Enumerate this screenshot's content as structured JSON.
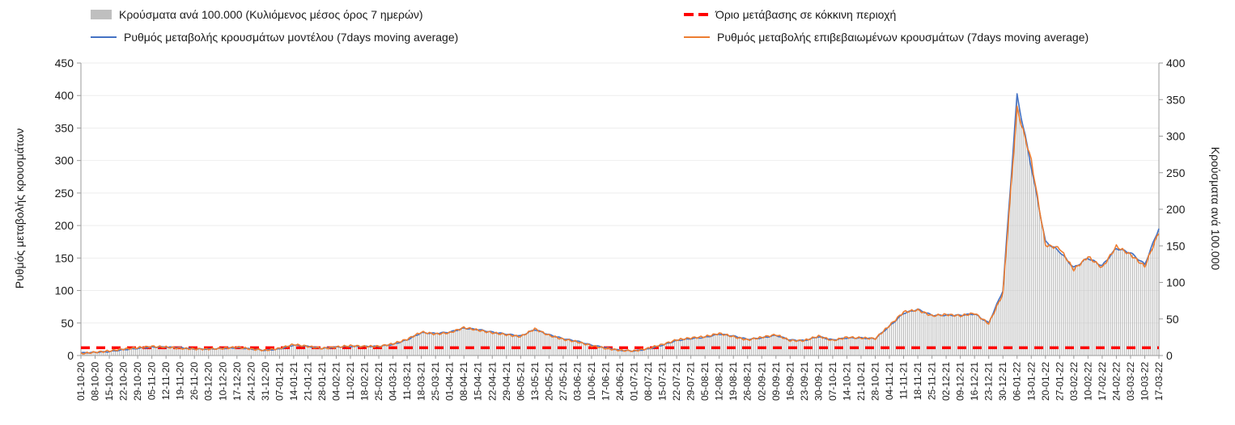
{
  "legend": {
    "bars": "Κρούσματα ανά 100.000 (Κυλιόμενος μέσος όρος 7 ημερών)",
    "threshold": "Όριο μετάβασης σε κόκκινη περιοχή",
    "model": "Ρυθμός μεταβολής κρουσμάτων μοντέλου (7days moving average)",
    "confirmed": "Ρυθμός μεταβολής επιβεβαιωμένων κρουσμάτων (7days moving average)"
  },
  "axes": {
    "left_title": "Ρυθμός μεταβολής κρουσμάτων",
    "right_title": "Κρούσματα ανά 100.000"
  },
  "colors": {
    "bars": "#bfbfbf",
    "model_line": "#4472c4",
    "confirmed_line": "#ed7d31",
    "threshold": "#fe0000",
    "grid": "#eeeeee",
    "axis": "#9a9a9a"
  },
  "chart_data": {
    "type": "combo",
    "legend_position": "top",
    "grid": "horizontal-faint",
    "x": [
      "01-10-20",
      "08-10-20",
      "15-10-20",
      "22-10-20",
      "29-10-20",
      "05-11-20",
      "12-11-20",
      "19-11-20",
      "26-11-20",
      "03-12-20",
      "10-12-20",
      "17-12-20",
      "24-12-20",
      "31-12-20",
      "07-01-21",
      "14-01-21",
      "21-01-21",
      "28-01-21",
      "04-02-21",
      "11-02-21",
      "18-02-21",
      "25-02-21",
      "04-03-21",
      "11-03-21",
      "18-03-21",
      "25-03-21",
      "01-04-21",
      "08-04-21",
      "15-04-21",
      "22-04-21",
      "29-04-21",
      "06-05-21",
      "13-05-21",
      "20-05-21",
      "27-05-21",
      "03-06-21",
      "10-06-21",
      "17-06-21",
      "24-06-21",
      "01-07-21",
      "08-07-21",
      "15-07-21",
      "22-07-21",
      "29-07-21",
      "05-08-21",
      "12-08-21",
      "19-08-21",
      "26-08-21",
      "02-09-21",
      "09-09-21",
      "16-09-21",
      "23-09-21",
      "30-09-21",
      "07-10-21",
      "14-10-21",
      "21-10-21",
      "28-10-21",
      "04-11-21",
      "11-11-21",
      "18-11-21",
      "25-11-21",
      "02-12-21",
      "09-12-21",
      "16-12-21",
      "23-12-21",
      "30-12-21",
      "06-01-22",
      "13-01-22",
      "20-01-22",
      "27-01-22",
      "03-02-22",
      "10-02-22",
      "17-02-22",
      "24-02-22",
      "03-03-22",
      "10-03-22",
      "17-03-22"
    ],
    "series": [
      {
        "name": "Κρούσματα ανά 100.000 (Κυλιόμενος μέσος όρος 7 ημερών)",
        "type": "bar",
        "axis": "right",
        "color": "#bfbfbf",
        "values": [
          4,
          4,
          5,
          8,
          10,
          12,
          12,
          11,
          9,
          9,
          10,
          11,
          9,
          7,
          9,
          14,
          12,
          10,
          12,
          12,
          12,
          12,
          15,
          21,
          31,
          30,
          32,
          37,
          36,
          32,
          29,
          27,
          36,
          28,
          23,
          20,
          14,
          11,
          7,
          6,
          9,
          14,
          20,
          23,
          25,
          29,
          27,
          22,
          24,
          28,
          21,
          20,
          26,
          21,
          24,
          24,
          23,
          40,
          58,
          63,
          55,
          55,
          55,
          57,
          45,
          89,
          356,
          258,
          156,
          142,
          120,
          134,
          123,
          147,
          141,
          125,
          174
        ]
      },
      {
        "name": "Ρυθμός μεταβολής κρουσμάτων μοντέλου (7days moving average)",
        "type": "line",
        "axis": "left",
        "color": "#4472c4",
        "values": [
          4,
          5,
          6,
          9,
          11,
          13,
          13,
          12,
          10,
          10,
          11,
          12,
          10,
          8,
          10,
          16,
          14,
          11,
          13,
          14,
          14,
          14,
          17,
          24,
          35,
          34,
          36,
          42,
          40,
          36,
          33,
          30,
          40,
          32,
          26,
          22,
          16,
          12,
          8,
          7,
          10,
          16,
          23,
          26,
          28,
          33,
          30,
          25,
          27,
          31,
          24,
          23,
          29,
          24,
          27,
          27,
          26,
          45,
          65,
          71,
          62,
          62,
          62,
          64,
          50,
          100,
          400,
          290,
          175,
          160,
          135,
          150,
          138,
          165,
          158,
          140,
          196
        ]
      },
      {
        "name": "Ρυθμός μεταβολής επιβεβαιωμένων κρουσμάτων (7days moving average)",
        "type": "line",
        "axis": "left",
        "color": "#ed7d31",
        "values": [
          3,
          5,
          7,
          10,
          12,
          14,
          13,
          11,
          10,
          10,
          11,
          13,
          10,
          8,
          11,
          17,
          14,
          11,
          13,
          15,
          14,
          14,
          18,
          25,
          36,
          33,
          35,
          43,
          39,
          35,
          32,
          29,
          41,
          31,
          25,
          21,
          15,
          11,
          8,
          7,
          11,
          17,
          24,
          27,
          29,
          34,
          29,
          24,
          28,
          32,
          23,
          23,
          30,
          23,
          28,
          27,
          26,
          46,
          67,
          70,
          61,
          63,
          61,
          65,
          49,
          95,
          380,
          300,
          170,
          165,
          132,
          152,
          135,
          168,
          155,
          137,
          190
        ]
      },
      {
        "name": "Όριο μετάβασης σε κόκκινη περιοχή",
        "type": "threshold",
        "axis": "left",
        "color": "#fe0000",
        "value": 12
      }
    ],
    "left_axis": {
      "title": "Ρυθμός μεταβολής κρουσμάτων",
      "min": 0,
      "max": 450,
      "step": 50,
      "ticks": [
        0,
        50,
        100,
        150,
        200,
        250,
        300,
        350,
        400,
        450
      ]
    },
    "right_axis": {
      "title": "Κρούσματα ανά 100.000",
      "min": 0,
      "max": 400,
      "step": 50,
      "ticks": [
        0,
        50,
        100,
        150,
        200,
        250,
        300,
        350,
        400
      ]
    }
  }
}
